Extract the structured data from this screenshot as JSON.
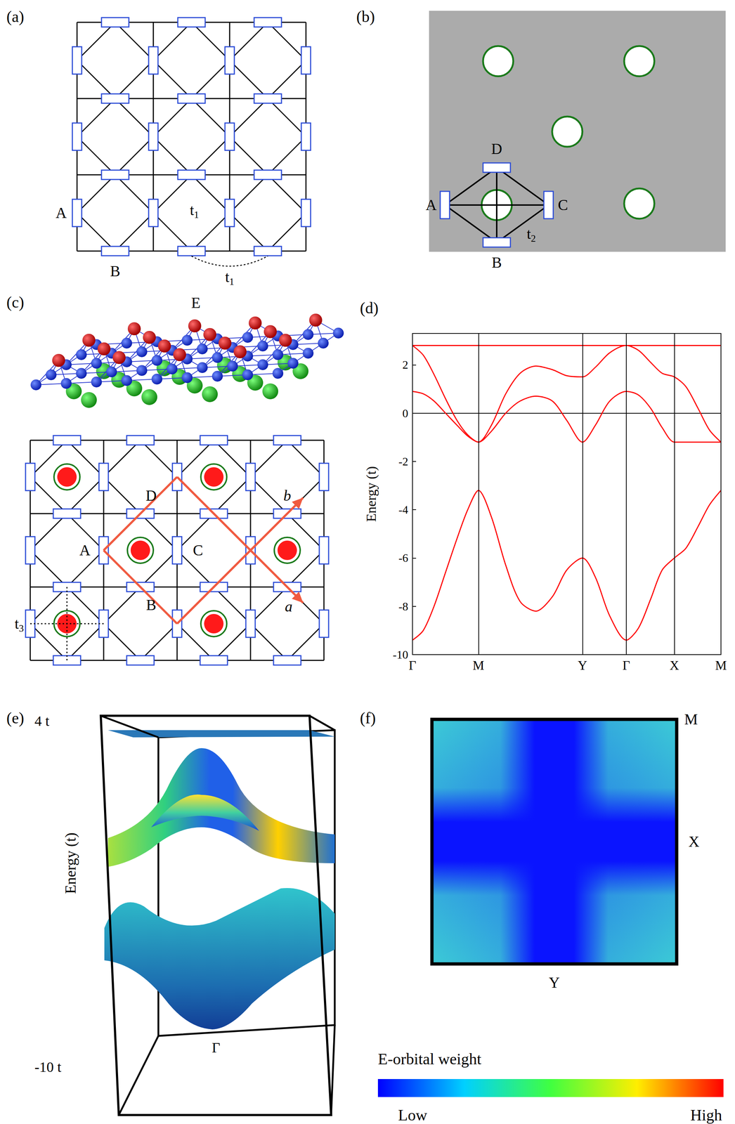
{
  "figure": {
    "a": {
      "label": "(a)",
      "sites": [
        "A",
        "B"
      ],
      "hoppings": [
        "t1",
        "t1"
      ]
    },
    "b": {
      "label": "(b)",
      "sites": [
        "D",
        "A",
        "C",
        "B"
      ],
      "hopping": "t2"
    },
    "c": {
      "label": "(c)",
      "atom": "E",
      "sites": [
        "A",
        "C",
        "B",
        "D"
      ],
      "hopping": "t3",
      "vectors": [
        "a",
        "b"
      ]
    },
    "e": {
      "label": "(e)",
      "z_top": "4 t",
      "z_bottom": "-10 t",
      "z_label": "Energy (t)",
      "point": "Γ"
    },
    "f": {
      "label": "(f)",
      "points": [
        "M",
        "X",
        "Y"
      ],
      "colorbar": {
        "title": "E-orbital weight",
        "low": "Low",
        "high": "High"
      }
    }
  },
  "chart_data": {
    "label": "(d)",
    "type": "line",
    "ylabel": "Energy (t)",
    "color": "#ff0000",
    "line_style": "solid",
    "grid": "x",
    "x": [
      0,
      0.15,
      0.3,
      0.46,
      0.62,
      0.77,
      0.92,
      1.1,
      1.3,
      1.5,
      1.72,
      1.95,
      2.15,
      2.37,
      2.55,
      2.75,
      2.98,
      3.15,
      3.32,
      3.48,
      3.65,
      3.81,
      3.98,
      4.14,
      4.3
    ],
    "series": [
      {
        "values": [
          2.8,
          2.8,
          2.8,
          2.8,
          2.8,
          2.8,
          2.8,
          2.8,
          2.8,
          2.8,
          2.8,
          2.8,
          2.8,
          2.8,
          2.8,
          2.8,
          2.8,
          2.8,
          2.8,
          2.8,
          2.8,
          2.8,
          2.8,
          2.8,
          2.8
        ]
      },
      {
        "values": [
          2.8,
          2.4,
          1.6,
          0.6,
          -0.3,
          -0.9,
          -1.2,
          -0.5,
          0.8,
          1.65,
          1.95,
          1.8,
          1.55,
          1.5,
          1.9,
          2.5,
          2.8,
          2.6,
          2.1,
          1.65,
          1.5,
          1.1,
          0.2,
          -0.7,
          -1.2
        ]
      },
      {
        "values": [
          0.9,
          0.8,
          0.5,
          0.0,
          -0.5,
          -0.95,
          -1.2,
          -0.75,
          0.0,
          0.5,
          0.7,
          0.5,
          -0.3,
          -1.2,
          -0.5,
          0.5,
          0.9,
          0.75,
          0.2,
          -0.6,
          -1.2,
          -1.2,
          -1.2,
          -1.2,
          -1.2
        ]
      },
      {
        "values": [
          -9.4,
          -9.0,
          -8.0,
          -6.6,
          -5.2,
          -4.0,
          -3.2,
          -4.3,
          -6.3,
          -7.8,
          -8.2,
          -7.6,
          -6.5,
          -6.0,
          -6.8,
          -8.4,
          -9.4,
          -8.9,
          -7.7,
          -6.5,
          -6.0,
          -5.6,
          -4.7,
          -3.8,
          -3.2
        ]
      }
    ],
    "xlim": [
      0,
      4.3
    ],
    "xticks": [
      {
        "value": 0,
        "label": "Γ"
      },
      {
        "value": 0.92,
        "label": "M"
      },
      {
        "value": 2.37,
        "label": "Y"
      },
      {
        "value": 2.98,
        "label": "Γ"
      },
      {
        "value": 3.65,
        "label": "X"
      },
      {
        "value": 4.3,
        "label": "M"
      }
    ],
    "ylim": [
      -10,
      3.3
    ],
    "yticks": [
      -10,
      -8,
      -6,
      -4,
      -2,
      0,
      2
    ]
  }
}
